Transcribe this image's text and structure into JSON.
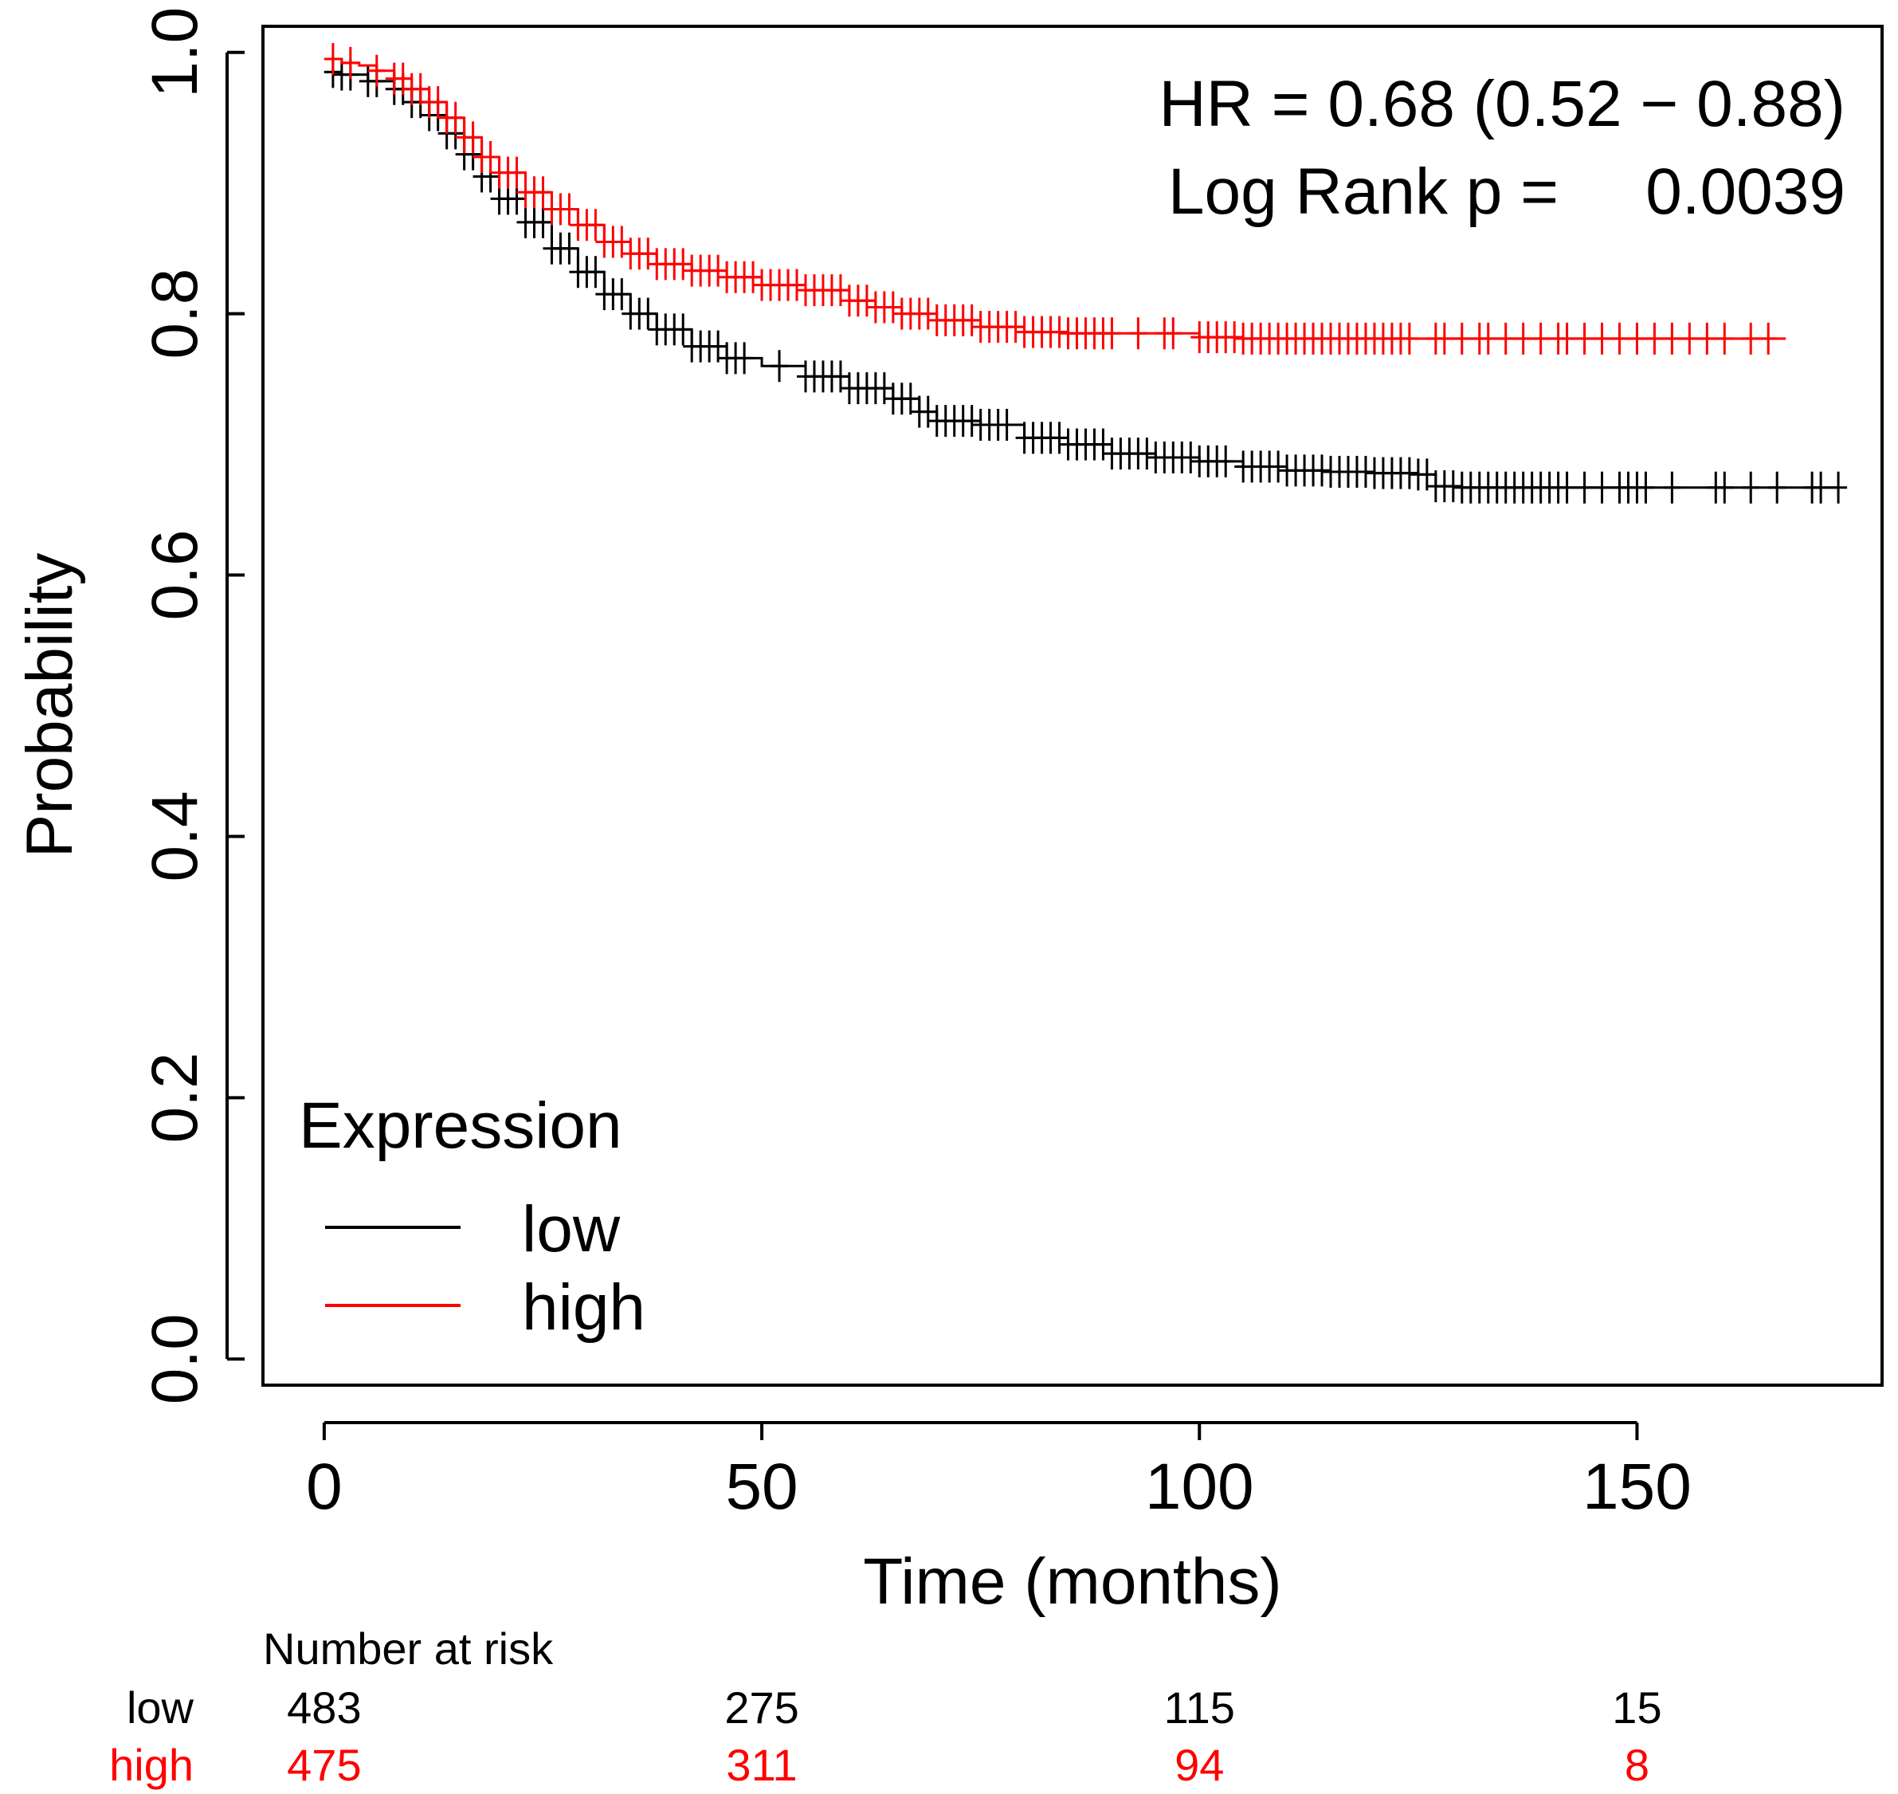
{
  "chart_data": {
    "type": "line",
    "subtype": "kaplan-meier",
    "xlabel": "Time (months)",
    "ylabel": "Probability",
    "xlim": [
      -7,
      178
    ],
    "ylim": [
      -0.02,
      1.02
    ],
    "xticks": [
      0,
      50,
      100,
      150
    ],
    "xtick_labels": [
      "0",
      "50",
      "100",
      "150"
    ],
    "yticks": [
      0.0,
      0.2,
      0.4,
      0.6,
      0.8,
      1.0
    ],
    "ytick_labels": [
      "0.0",
      "0.2",
      "0.4",
      "0.6",
      "0.8",
      "1.0"
    ],
    "annotations": {
      "hr": "HR = 0.68 (0.52 − 0.88)",
      "logrank_label": "Log Rank p =",
      "logrank_value": "0.0039"
    },
    "legend": {
      "title": "Expression",
      "position": "bottom-left"
    },
    "series": [
      {
        "name": "low",
        "color": "#000000",
        "x": [
          0,
          2,
          5,
          8,
          10,
          12,
          14,
          16,
          18,
          20,
          23,
          26,
          29,
          32,
          35,
          38,
          42,
          46,
          50,
          55,
          60,
          65,
          68,
          70,
          75,
          80,
          85,
          90,
          95,
          100,
          105,
          110,
          115,
          120,
          125,
          127,
          130,
          135,
          140,
          145,
          150,
          155,
          160,
          165,
          170,
          173
        ],
        "y": [
          0.985,
          0.983,
          0.978,
          0.972,
          0.962,
          0.952,
          0.938,
          0.922,
          0.905,
          0.888,
          0.87,
          0.85,
          0.832,
          0.815,
          0.8,
          0.788,
          0.775,
          0.766,
          0.76,
          0.752,
          0.743,
          0.735,
          0.725,
          0.718,
          0.715,
          0.705,
          0.7,
          0.693,
          0.69,
          0.687,
          0.683,
          0.68,
          0.679,
          0.678,
          0.677,
          0.668,
          0.667,
          0.667,
          0.667,
          0.667,
          0.667,
          0.667,
          0.667,
          0.667,
          0.667,
          0.667
        ],
        "censor_x": [
          1,
          2,
          3,
          5,
          6,
          8,
          9,
          10,
          11,
          12,
          13,
          14,
          15,
          16,
          17,
          18,
          19,
          20,
          21,
          22,
          23,
          24,
          25,
          26,
          27,
          28,
          29,
          30,
          31,
          32,
          33,
          34,
          35,
          36,
          37,
          38,
          39,
          40,
          41,
          42,
          43,
          44,
          45,
          46,
          47,
          48,
          52,
          55,
          56,
          57,
          58,
          59,
          60,
          61,
          62,
          63,
          64,
          65,
          66,
          67,
          68,
          69,
          70,
          71,
          72,
          73,
          74,
          75,
          76,
          77,
          78,
          80,
          81,
          82,
          83,
          84,
          85,
          86,
          87,
          88,
          89,
          90,
          91,
          92,
          93,
          94,
          95,
          96,
          97,
          98,
          99,
          100,
          101,
          102,
          103,
          105,
          106,
          107,
          108,
          109,
          110,
          111,
          112,
          113,
          114,
          115,
          116,
          117,
          118,
          119,
          120,
          121,
          122,
          123,
          124,
          125,
          126,
          127,
          128,
          129,
          130,
          131,
          132,
          133,
          134,
          135,
          136,
          137,
          138,
          139,
          140,
          141,
          142,
          144,
          146,
          148,
          149,
          150,
          151,
          154,
          159,
          160,
          163,
          166,
          170,
          171,
          173
        ]
      },
      {
        "name": "high",
        "color": "#ff0000",
        "x": [
          0,
          2,
          4,
          6,
          8,
          10,
          12,
          14,
          16,
          18,
          20,
          23,
          26,
          29,
          32,
          35,
          38,
          42,
          46,
          50,
          55,
          60,
          63,
          66,
          70,
          75,
          80,
          85,
          90,
          95,
          100,
          105,
          110,
          120,
          130,
          140,
          150,
          160,
          167
        ],
        "y": [
          0.995,
          0.992,
          0.99,
          0.986,
          0.98,
          0.972,
          0.962,
          0.95,
          0.935,
          0.92,
          0.908,
          0.893,
          0.88,
          0.868,
          0.855,
          0.846,
          0.838,
          0.833,
          0.828,
          0.822,
          0.818,
          0.81,
          0.805,
          0.8,
          0.795,
          0.79,
          0.786,
          0.785,
          0.785,
          0.785,
          0.782,
          0.781,
          0.781,
          0.781,
          0.781,
          0.781,
          0.781,
          0.781,
          0.781
        ],
        "censor_x": [
          1,
          3,
          6,
          8,
          9,
          10,
          11,
          12,
          13,
          14,
          15,
          16,
          17,
          18,
          19,
          20,
          21,
          22,
          23,
          24,
          25,
          26,
          27,
          28,
          29,
          30,
          31,
          32,
          33,
          34,
          35,
          36,
          37,
          38,
          39,
          40,
          41,
          42,
          43,
          44,
          45,
          46,
          47,
          48,
          49,
          50,
          51,
          52,
          53,
          54,
          55,
          56,
          57,
          58,
          59,
          60,
          61,
          62,
          63,
          64,
          65,
          66,
          67,
          68,
          69,
          70,
          71,
          72,
          73,
          74,
          75,
          76,
          77,
          78,
          79,
          80,
          81,
          82,
          83,
          84,
          85,
          86,
          87,
          88,
          89,
          90,
          93,
          96,
          97,
          100,
          101,
          102,
          103,
          104,
          105,
          106,
          107,
          108,
          109,
          110,
          111,
          112,
          113,
          114,
          115,
          116,
          117,
          118,
          119,
          120,
          121,
          122,
          123,
          124,
          127,
          128,
          130,
          132,
          133,
          135,
          137,
          139,
          141,
          142,
          144,
          146,
          148,
          150,
          152,
          154,
          156,
          158,
          160,
          163,
          165
        ]
      }
    ],
    "risk_table": {
      "title": "Number at risk",
      "times": [
        0,
        50,
        100,
        150
      ],
      "rows": [
        {
          "label": "low",
          "color": "#000000",
          "values": [
            "483",
            "275",
            "115",
            "15"
          ]
        },
        {
          "label": "high",
          "color": "#ff0000",
          "values": [
            "475",
            "311",
            "94",
            "8"
          ]
        }
      ]
    }
  }
}
